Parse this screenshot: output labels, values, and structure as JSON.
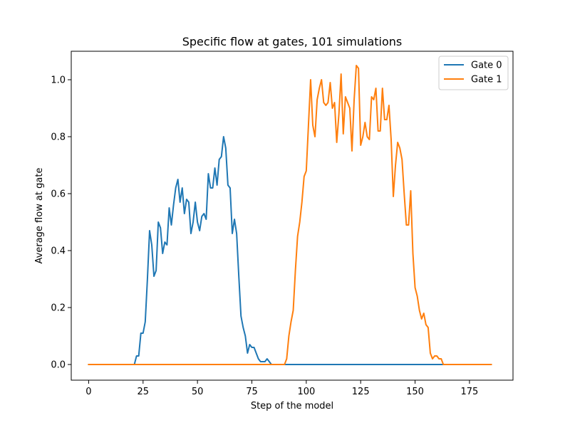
{
  "chart_data": {
    "type": "line",
    "title": "Specific flow at gates, 101 simulations",
    "xlabel": "Step of the model",
    "ylabel": "Average flow at gate",
    "xlim": [
      -8,
      195
    ],
    "ylim": [
      -0.055,
      1.1
    ],
    "xticks": [
      0,
      25,
      50,
      75,
      100,
      125,
      150,
      175
    ],
    "yticks": [
      0.0,
      0.2,
      0.4,
      0.6,
      0.8,
      1.0
    ],
    "xtick_labels": [
      "0",
      "25",
      "50",
      "75",
      "100",
      "125",
      "150",
      "175"
    ],
    "ytick_labels": [
      "0.0",
      "0.2",
      "0.4",
      "0.6",
      "0.8",
      "1.0"
    ],
    "grid": false,
    "legend_position": "top-right",
    "series": [
      {
        "name": "Gate 0",
        "color": "#1f77b4",
        "x": [
          0,
          21,
          22,
          23,
          24,
          25,
          26,
          27,
          28,
          29,
          30,
          31,
          32,
          33,
          34,
          35,
          36,
          37,
          38,
          39,
          40,
          41,
          42,
          43,
          44,
          45,
          46,
          47,
          48,
          49,
          50,
          51,
          52,
          53,
          54,
          55,
          56,
          57,
          58,
          59,
          60,
          61,
          62,
          63,
          64,
          65,
          66,
          67,
          68,
          69,
          70,
          71,
          72,
          73,
          74,
          75,
          76,
          77,
          78,
          79,
          80,
          81,
          82,
          83,
          84,
          185
        ],
        "y": [
          0,
          0,
          0.03,
          0.03,
          0.11,
          0.11,
          0.15,
          0.3,
          0.47,
          0.42,
          0.31,
          0.33,
          0.5,
          0.48,
          0.39,
          0.43,
          0.42,
          0.55,
          0.49,
          0.56,
          0.62,
          0.65,
          0.57,
          0.62,
          0.53,
          0.58,
          0.57,
          0.46,
          0.5,
          0.57,
          0.5,
          0.47,
          0.52,
          0.53,
          0.51,
          0.67,
          0.62,
          0.62,
          0.69,
          0.63,
          0.72,
          0.73,
          0.8,
          0.76,
          0.63,
          0.62,
          0.46,
          0.51,
          0.46,
          0.31,
          0.17,
          0.13,
          0.1,
          0.04,
          0.07,
          0.06,
          0.06,
          0.04,
          0.02,
          0.01,
          0.01,
          0.01,
          0.02,
          0.01,
          0,
          0
        ]
      },
      {
        "name": "Gate 1",
        "color": "#ff7f0e",
        "x": [
          0,
          90,
          91,
          92,
          93,
          94,
          95,
          96,
          97,
          98,
          99,
          100,
          101,
          102,
          103,
          104,
          105,
          106,
          107,
          108,
          109,
          110,
          111,
          112,
          113,
          114,
          115,
          116,
          117,
          118,
          119,
          120,
          121,
          122,
          123,
          124,
          125,
          126,
          127,
          128,
          129,
          130,
          131,
          132,
          133,
          134,
          135,
          136,
          137,
          138,
          139,
          140,
          141,
          142,
          143,
          144,
          145,
          146,
          147,
          148,
          149,
          150,
          151,
          152,
          153,
          154,
          155,
          156,
          157,
          158,
          159,
          160,
          161,
          162,
          163,
          164,
          185
        ],
        "y": [
          0,
          0,
          0.02,
          0.1,
          0.15,
          0.19,
          0.33,
          0.45,
          0.5,
          0.57,
          0.66,
          0.68,
          0.84,
          1.0,
          0.84,
          0.8,
          0.93,
          0.97,
          1.0,
          0.92,
          0.91,
          0.92,
          0.99,
          0.9,
          0.92,
          0.78,
          0.88,
          1.02,
          0.81,
          0.94,
          0.92,
          0.9,
          0.75,
          0.93,
          1.05,
          1.04,
          0.77,
          0.8,
          0.85,
          0.8,
          0.79,
          0.94,
          0.93,
          0.97,
          0.82,
          0.82,
          0.97,
          0.86,
          0.86,
          0.91,
          0.79,
          0.59,
          0.7,
          0.78,
          0.76,
          0.72,
          0.6,
          0.49,
          0.49,
          0.61,
          0.39,
          0.27,
          0.24,
          0.19,
          0.16,
          0.18,
          0.14,
          0.13,
          0.04,
          0.02,
          0.03,
          0.03,
          0.02,
          0.02,
          0,
          0,
          0
        ]
      }
    ]
  }
}
